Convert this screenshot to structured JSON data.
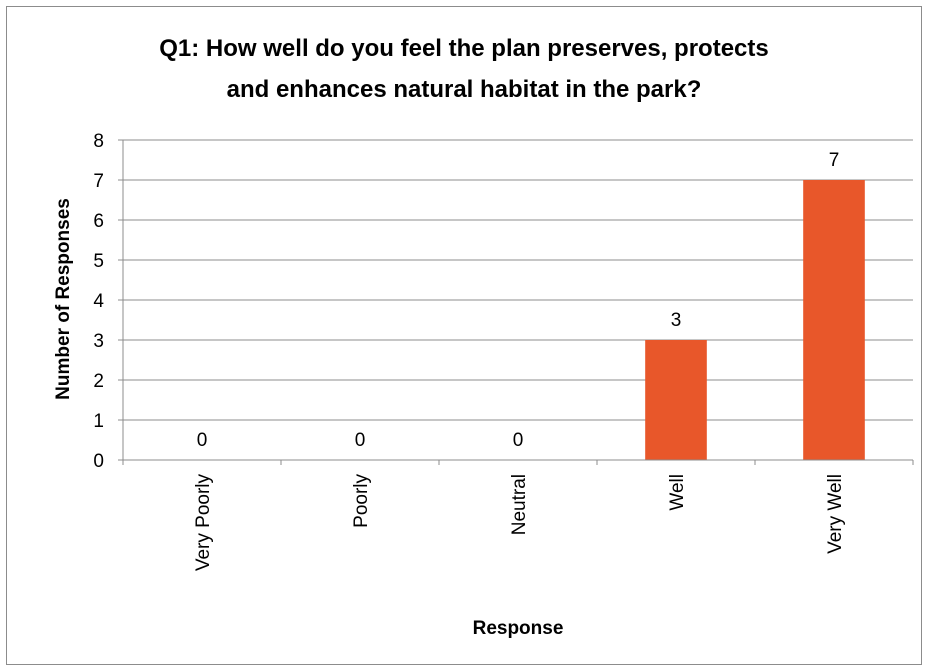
{
  "chart_data": {
    "type": "bar",
    "title_lines": [
      "Q1: How well do you feel the plan preserves, protects",
      "and enhances natural habitat in the park?"
    ],
    "xlabel": "Response",
    "ylabel": "Number of Responses",
    "categories": [
      "Very Poorly",
      "Poorly",
      "Neutral",
      "Well",
      "Very Well"
    ],
    "values": [
      0,
      0,
      0,
      3,
      7
    ],
    "data_labels": [
      "0",
      "0",
      "0",
      "3",
      "7"
    ],
    "ylim": [
      0,
      8
    ],
    "yticks": [
      "0",
      "1",
      "2",
      "3",
      "4",
      "5",
      "6",
      "7",
      "8"
    ],
    "grid": true,
    "legend": "none",
    "colors": {
      "bar": "#E8572A",
      "grid": "#8c8c8c",
      "frame": "#8c8c8c"
    }
  }
}
